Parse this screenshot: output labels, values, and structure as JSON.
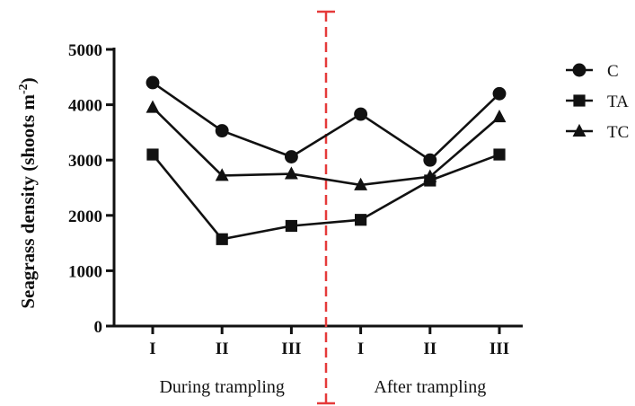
{
  "chart_data": {
    "type": "line",
    "ylabel_main": "Seagrass density (shoots  m",
    "ylabel_sup": "-2",
    "ylabel_close": ")",
    "ylim": [
      0,
      5000
    ],
    "yticks": [
      0,
      1000,
      2000,
      3000,
      4000,
      5000
    ],
    "x_tick_labels": [
      "I",
      "II",
      "III",
      "I",
      "II",
      "III"
    ],
    "groups": [
      {
        "label": "During trampling"
      },
      {
        "label": "After trampling"
      }
    ],
    "divider_color": "#e53a3a",
    "series": [
      {
        "name": "C",
        "marker": "circle",
        "values": [
          4400,
          3530,
          3060,
          3830,
          3000,
          4200
        ]
      },
      {
        "name": "TA",
        "marker": "square",
        "values": [
          3100,
          1570,
          1810,
          1920,
          2630,
          3100
        ]
      },
      {
        "name": "TC",
        "marker": "triangle",
        "values": [
          3950,
          2720,
          2750,
          2550,
          2700,
          3780
        ]
      }
    ],
    "legend_position": "right",
    "grid": false
  }
}
